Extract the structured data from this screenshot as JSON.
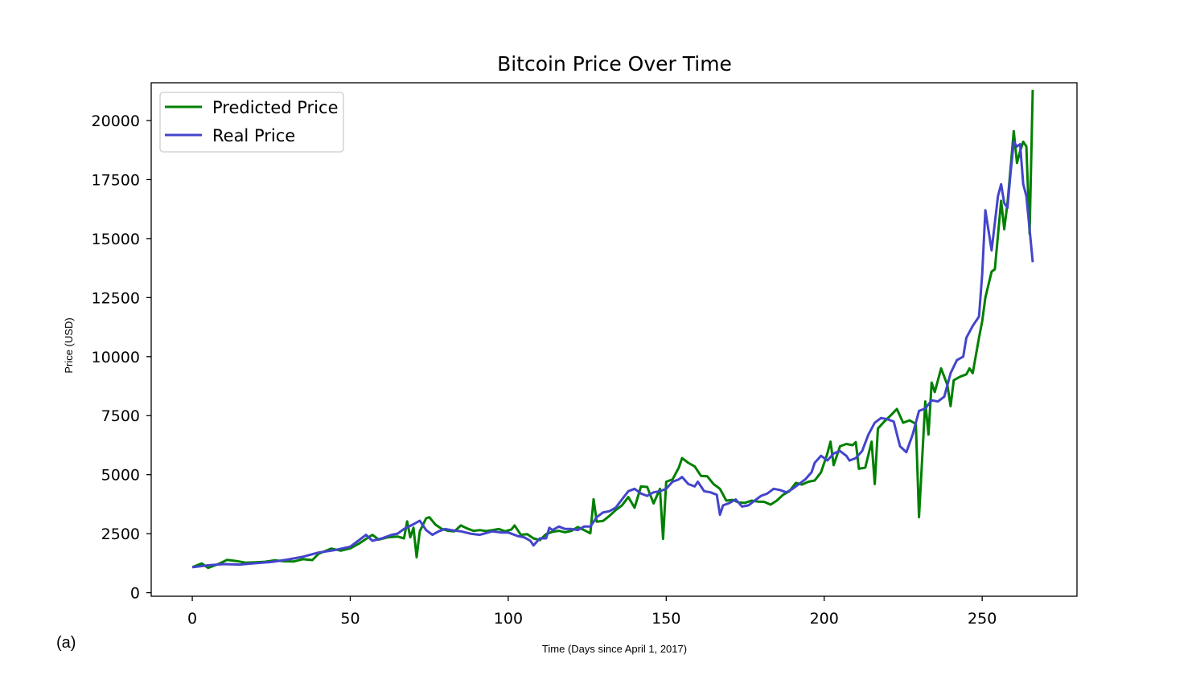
{
  "chart_data": {
    "type": "line",
    "title": "Bitcoin Price Over Time",
    "xlabel": "Time (Days since April 1, 2017)",
    "ylabel": "Price (USD)",
    "panel_label": "(a)",
    "xlim": [
      -13,
      280
    ],
    "ylim": [
      -150,
      21600
    ],
    "xticks": [
      0,
      50,
      100,
      150,
      200,
      250
    ],
    "yticks": [
      0,
      2500,
      5000,
      7500,
      10000,
      12500,
      15000,
      17500,
      20000
    ],
    "legend_position": "upper-left",
    "grid": false,
    "series": [
      {
        "name": "Predicted Price",
        "color": "#008000",
        "points": [
          [
            0,
            1080
          ],
          [
            3,
            1240
          ],
          [
            5,
            1050
          ],
          [
            8,
            1200
          ],
          [
            11,
            1390
          ],
          [
            14,
            1340
          ],
          [
            17,
            1270
          ],
          [
            20,
            1290
          ],
          [
            23,
            1310
          ],
          [
            26,
            1370
          ],
          [
            29,
            1330
          ],
          [
            32,
            1320
          ],
          [
            35,
            1420
          ],
          [
            38,
            1380
          ],
          [
            40,
            1650
          ],
          [
            42,
            1760
          ],
          [
            44,
            1870
          ],
          [
            47,
            1780
          ],
          [
            50,
            1880
          ],
          [
            53,
            2100
          ],
          [
            55,
            2280
          ],
          [
            57,
            2450
          ],
          [
            59,
            2250
          ],
          [
            62,
            2350
          ],
          [
            65,
            2380
          ],
          [
            67,
            2300
          ],
          [
            68,
            3020
          ],
          [
            69,
            2350
          ],
          [
            70,
            2750
          ],
          [
            71,
            1500
          ],
          [
            72,
            2600
          ],
          [
            74,
            3150
          ],
          [
            75,
            3200
          ],
          [
            77,
            2880
          ],
          [
            79,
            2700
          ],
          [
            81,
            2620
          ],
          [
            83,
            2600
          ],
          [
            85,
            2850
          ],
          [
            87,
            2720
          ],
          [
            89,
            2620
          ],
          [
            91,
            2650
          ],
          [
            93,
            2610
          ],
          [
            95,
            2650
          ],
          [
            97,
            2700
          ],
          [
            99,
            2600
          ],
          [
            101,
            2680
          ],
          [
            102,
            2850
          ],
          [
            104,
            2450
          ],
          [
            106,
            2480
          ],
          [
            108,
            2300
          ],
          [
            110,
            2230
          ],
          [
            112,
            2480
          ],
          [
            114,
            2580
          ],
          [
            116,
            2620
          ],
          [
            118,
            2560
          ],
          [
            120,
            2620
          ],
          [
            122,
            2780
          ],
          [
            124,
            2650
          ],
          [
            126,
            2520
          ],
          [
            127,
            3960
          ],
          [
            128,
            3010
          ],
          [
            130,
            3040
          ],
          [
            132,
            3250
          ],
          [
            134,
            3500
          ],
          [
            136,
            3700
          ],
          [
            138,
            4050
          ],
          [
            140,
            3600
          ],
          [
            142,
            4500
          ],
          [
            144,
            4480
          ],
          [
            146,
            3780
          ],
          [
            148,
            4400
          ],
          [
            149,
            2280
          ],
          [
            150,
            4700
          ],
          [
            152,
            4800
          ],
          [
            154,
            5300
          ],
          [
            155,
            5700
          ],
          [
            157,
            5500
          ],
          [
            159,
            5350
          ],
          [
            161,
            4950
          ],
          [
            163,
            4930
          ],
          [
            165,
            4600
          ],
          [
            167,
            4400
          ],
          [
            169,
            3900
          ],
          [
            171,
            3930
          ],
          [
            173,
            3820
          ],
          [
            175,
            3810
          ],
          [
            177,
            3900
          ],
          [
            179,
            3860
          ],
          [
            181,
            3850
          ],
          [
            183,
            3730
          ],
          [
            185,
            3900
          ],
          [
            187,
            4150
          ],
          [
            189,
            4300
          ],
          [
            191,
            4650
          ],
          [
            193,
            4580
          ],
          [
            195,
            4700
          ],
          [
            197,
            4750
          ],
          [
            199,
            5100
          ],
          [
            201,
            5900
          ],
          [
            202,
            6400
          ],
          [
            203,
            5400
          ],
          [
            205,
            6200
          ],
          [
            207,
            6300
          ],
          [
            209,
            6250
          ],
          [
            210,
            6380
          ],
          [
            211,
            5250
          ],
          [
            213,
            5300
          ],
          [
            215,
            6400
          ],
          [
            216,
            4600
          ],
          [
            217,
            6950
          ],
          [
            219,
            7250
          ],
          [
            221,
            7500
          ],
          [
            223,
            7780
          ],
          [
            225,
            7200
          ],
          [
            227,
            7300
          ],
          [
            229,
            7150
          ],
          [
            230,
            3200
          ],
          [
            232,
            8100
          ],
          [
            233,
            6700
          ],
          [
            234,
            8900
          ],
          [
            235,
            8500
          ],
          [
            237,
            9500
          ],
          [
            239,
            8800
          ],
          [
            240,
            7900
          ],
          [
            241,
            9000
          ],
          [
            243,
            9150
          ],
          [
            245,
            9250
          ],
          [
            246,
            9500
          ],
          [
            247,
            9300
          ],
          [
            249,
            10800
          ],
          [
            250,
            11500
          ],
          [
            251,
            12500
          ],
          [
            253,
            13600
          ],
          [
            254,
            13700
          ],
          [
            256,
            16600
          ],
          [
            257,
            15400
          ],
          [
            258,
            16500
          ],
          [
            259,
            18000
          ],
          [
            260,
            19550
          ],
          [
            261,
            18200
          ],
          [
            262,
            18700
          ],
          [
            263,
            19100
          ],
          [
            264,
            18900
          ],
          [
            265,
            15200
          ],
          [
            266,
            21300
          ]
        ]
      },
      {
        "name": "Real Price",
        "color": "#4444cc",
        "points": [
          [
            0,
            1080
          ],
          [
            5,
            1160
          ],
          [
            10,
            1210
          ],
          [
            15,
            1190
          ],
          [
            20,
            1250
          ],
          [
            25,
            1300
          ],
          [
            30,
            1400
          ],
          [
            35,
            1520
          ],
          [
            40,
            1700
          ],
          [
            45,
            1800
          ],
          [
            50,
            1950
          ],
          [
            53,
            2250
          ],
          [
            55,
            2450
          ],
          [
            57,
            2200
          ],
          [
            60,
            2300
          ],
          [
            63,
            2450
          ],
          [
            65,
            2500
          ],
          [
            67,
            2700
          ],
          [
            70,
            2900
          ],
          [
            72,
            3050
          ],
          [
            74,
            2650
          ],
          [
            76,
            2450
          ],
          [
            78,
            2600
          ],
          [
            80,
            2700
          ],
          [
            82,
            2650
          ],
          [
            85,
            2600
          ],
          [
            88,
            2500
          ],
          [
            91,
            2450
          ],
          [
            95,
            2600
          ],
          [
            98,
            2550
          ],
          [
            100,
            2550
          ],
          [
            103,
            2400
          ],
          [
            105,
            2350
          ],
          [
            107,
            2200
          ],
          [
            108,
            2000
          ],
          [
            110,
            2300
          ],
          [
            112,
            2300
          ],
          [
            113,
            2750
          ],
          [
            114,
            2650
          ],
          [
            116,
            2800
          ],
          [
            118,
            2700
          ],
          [
            120,
            2700
          ],
          [
            122,
            2650
          ],
          [
            124,
            2800
          ],
          [
            126,
            2800
          ],
          [
            128,
            3200
          ],
          [
            130,
            3400
          ],
          [
            132,
            3450
          ],
          [
            134,
            3600
          ],
          [
            136,
            3950
          ],
          [
            138,
            4300
          ],
          [
            140,
            4400
          ],
          [
            142,
            4200
          ],
          [
            144,
            4100
          ],
          [
            146,
            4250
          ],
          [
            148,
            4300
          ],
          [
            150,
            4400
          ],
          [
            152,
            4700
          ],
          [
            154,
            4800
          ],
          [
            155,
            4900
          ],
          [
            157,
            4600
          ],
          [
            159,
            4500
          ],
          [
            160,
            4700
          ],
          [
            162,
            4300
          ],
          [
            164,
            4250
          ],
          [
            166,
            4150
          ],
          [
            167,
            3300
          ],
          [
            168,
            3700
          ],
          [
            170,
            3800
          ],
          [
            172,
            3950
          ],
          [
            174,
            3650
          ],
          [
            176,
            3700
          ],
          [
            178,
            3900
          ],
          [
            180,
            4100
          ],
          [
            182,
            4200
          ],
          [
            184,
            4400
          ],
          [
            186,
            4350
          ],
          [
            188,
            4250
          ],
          [
            190,
            4400
          ],
          [
            192,
            4600
          ],
          [
            194,
            4800
          ],
          [
            196,
            5100
          ],
          [
            197,
            5500
          ],
          [
            199,
            5800
          ],
          [
            201,
            5600
          ],
          [
            203,
            5900
          ],
          [
            205,
            6000
          ],
          [
            207,
            5800
          ],
          [
            208,
            5600
          ],
          [
            210,
            5700
          ],
          [
            212,
            6000
          ],
          [
            214,
            6700
          ],
          [
            216,
            7200
          ],
          [
            218,
            7400
          ],
          [
            220,
            7350
          ],
          [
            222,
            7250
          ],
          [
            224,
            6200
          ],
          [
            226,
            5950
          ],
          [
            228,
            6700
          ],
          [
            230,
            7700
          ],
          [
            232,
            7800
          ],
          [
            234,
            8150
          ],
          [
            236,
            8100
          ],
          [
            238,
            8300
          ],
          [
            240,
            9300
          ],
          [
            242,
            9850
          ],
          [
            244,
            10000
          ],
          [
            245,
            10800
          ],
          [
            247,
            11300
          ],
          [
            249,
            11700
          ],
          [
            250,
            13500
          ],
          [
            251,
            16200
          ],
          [
            253,
            14500
          ],
          [
            255,
            16800
          ],
          [
            256,
            17300
          ],
          [
            257,
            16500
          ],
          [
            258,
            16300
          ],
          [
            259,
            17800
          ],
          [
            260,
            19100
          ],
          [
            261,
            18900
          ],
          [
            262,
            19000
          ],
          [
            263,
            17300
          ],
          [
            264,
            16800
          ],
          [
            265,
            15400
          ],
          [
            266,
            14000
          ]
        ]
      }
    ]
  }
}
